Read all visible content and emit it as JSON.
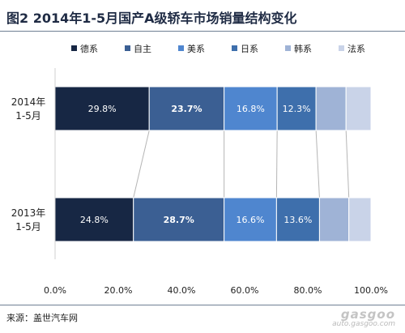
{
  "title": "图2  2014年1-5月国产A级轿车市场销量结构变化",
  "source": "来源：盖世汽车网",
  "watermark": {
    "logo": "gasgoo",
    "url": "auto.gasgoo.com"
  },
  "chart_data": {
    "type": "bar",
    "orientation": "horizontal",
    "stacked": "percent",
    "categories": [
      "2014年\n1-5月",
      "2013年\n1-5月"
    ],
    "series": [
      {
        "name": "德系",
        "color": "#172744",
        "values": [
          29.8,
          24.8
        ],
        "labels": [
          "29.8%",
          "24.8%"
        ]
      },
      {
        "name": "自主",
        "color": "#3b5f93",
        "values": [
          23.7,
          28.7
        ],
        "labels": [
          "23.7%",
          "28.7%"
        ]
      },
      {
        "name": "美系",
        "color": "#4f86cf",
        "values": [
          16.8,
          16.6
        ],
        "labels": [
          "16.8%",
          "16.6%"
        ]
      },
      {
        "name": "日系",
        "color": "#3e6fac",
        "values": [
          12.3,
          13.6
        ],
        "labels": [
          "12.3%",
          "13.6%"
        ]
      },
      {
        "name": "韩系",
        "color": "#9fb3d6",
        "values": [
          9.5,
          9.3
        ],
        "labels": [
          "",
          ""
        ]
      },
      {
        "name": "法系",
        "color": "#c9d3e8",
        "values": [
          7.9,
          7.0
        ],
        "labels": [
          "",
          ""
        ]
      }
    ],
    "xlim": [
      0,
      100
    ],
    "xticks": [
      "0.0%",
      "20.0%",
      "40.0%",
      "60.0%",
      "80.0%",
      "100.0%"
    ],
    "legend_position": "top",
    "grid": false
  }
}
